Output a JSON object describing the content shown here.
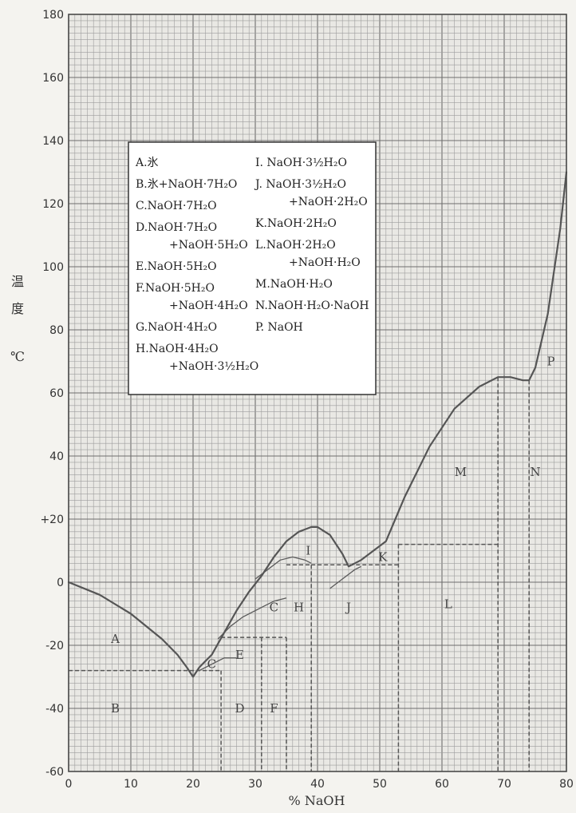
{
  "chart_data": {
    "type": "line",
    "title": "",
    "xlabel": "% NaOH",
    "ylabel": [
      "温",
      "度",
      "℃"
    ],
    "xlim": [
      0,
      80
    ],
    "ylim": [
      -60,
      180
    ],
    "xticks": [
      "0",
      "10",
      "20",
      "30",
      "40",
      "50",
      "60",
      "70",
      "80"
    ],
    "yticks": [
      "180",
      "160",
      "140",
      "120",
      "100",
      "80",
      "60",
      "40",
      "+20",
      "0",
      "-20",
      "-40",
      "-60"
    ],
    "grid": true,
    "liquidus": {
      "x": [
        0,
        5,
        10,
        15,
        17.5,
        19,
        20,
        21,
        23,
        25,
        27,
        29,
        31,
        33,
        35,
        37,
        39,
        40,
        42,
        44,
        45,
        47,
        49,
        51,
        54,
        58,
        62,
        66,
        69,
        71,
        73,
        74,
        75,
        77,
        79,
        80
      ],
      "y": [
        0,
        -4,
        -10,
        -18,
        -23,
        -27,
        -30,
        -27,
        -23,
        -16,
        -9,
        -3,
        2,
        8,
        13,
        16,
        17.5,
        17.5,
        15,
        9,
        5,
        7,
        10,
        13,
        27,
        43,
        55,
        62,
        65,
        65,
        64,
        64,
        68,
        85,
        112,
        130
      ]
    },
    "minor_curves": [
      {
        "x": [
          21,
          23,
          25,
          27
        ],
        "y": [
          -28,
          -26,
          -24,
          -24
        ]
      },
      {
        "x": [
          24,
          26,
          28,
          31,
          33,
          35
        ],
        "y": [
          -18,
          -14,
          -11,
          -8,
          -6,
          -5
        ]
      },
      {
        "x": [
          30,
          32,
          34,
          36,
          38,
          39
        ],
        "y": [
          1,
          4,
          7,
          8,
          7,
          6
        ]
      },
      {
        "x": [
          42,
          44,
          46,
          47
        ],
        "y": [
          -2,
          1,
          4,
          5
        ]
      }
    ],
    "phase_lines": [
      {
        "x": [
          0,
          24.5
        ],
        "y": [
          -28,
          -28
        ]
      },
      {
        "x": [
          24.5,
          24.5
        ],
        "y": [
          -28,
          -60
        ]
      },
      {
        "x": [
          24.5,
          35
        ],
        "y": [
          -17.5,
          -17.5
        ]
      },
      {
        "x": [
          31,
          31
        ],
        "y": [
          -17.5,
          -60
        ]
      },
      {
        "x": [
          35,
          35
        ],
        "y": [
          -17.5,
          -60
        ]
      },
      {
        "x": [
          35,
          39
        ],
        "y": [
          5.5,
          5.5
        ]
      },
      {
        "x": [
          39,
          39
        ],
        "y": [
          5.5,
          -60
        ]
      },
      {
        "x": [
          39,
          53
        ],
        "y": [
          5.5,
          5.5
        ]
      },
      {
        "x": [
          53,
          69
        ],
        "y": [
          12,
          12
        ]
      },
      {
        "x": [
          53,
          53
        ],
        "y": [
          12,
          -60
        ]
      },
      {
        "x": [
          69,
          69
        ],
        "y": [
          65,
          -60
        ]
      },
      {
        "x": [
          74,
          74
        ],
        "y": [
          64,
          -60
        ]
      }
    ],
    "region_labels": [
      {
        "text": "A",
        "x": 7.5,
        "y": -18
      },
      {
        "text": "B",
        "x": 7.5,
        "y": -40
      },
      {
        "text": "C",
        "x": 23,
        "y": -26
      },
      {
        "text": "E",
        "x": 27.5,
        "y": -23
      },
      {
        "text": "D",
        "x": 27.5,
        "y": -40
      },
      {
        "text": "F",
        "x": 33,
        "y": -40
      },
      {
        "text": "C",
        "x": 33,
        "y": -8
      },
      {
        "text": "H",
        "x": 37,
        "y": -8
      },
      {
        "text": "I",
        "x": 38.5,
        "y": 10
      },
      {
        "text": "J",
        "x": 45,
        "y": -8
      },
      {
        "text": "K",
        "x": 50.5,
        "y": 8
      },
      {
        "text": "L",
        "x": 61,
        "y": -7
      },
      {
        "text": "M",
        "x": 63,
        "y": 35
      },
      {
        "text": "N",
        "x": 75,
        "y": 35
      },
      {
        "text": "P",
        "x": 77.5,
        "y": 70
      }
    ],
    "legend": {
      "col1": [
        [
          "A.氷"
        ],
        [
          "B.氷+NaOH·7H₂O"
        ],
        [
          "C.NaOH·7H₂O"
        ],
        [
          "D.NaOH·7H₂O",
          "+NaOH·5H₂O"
        ],
        [
          "E.NaOH·5H₂O"
        ],
        [
          "F.NaOH·5H₂O",
          "+NaOH·4H₂O"
        ],
        [
          "G.NaOH·4H₂O"
        ],
        [
          "H.NaOH·4H₂O",
          "+NaOH·3½H₂O"
        ]
      ],
      "col2": [
        [
          "I. NaOH·3½H₂O"
        ],
        [
          "J. NaOH·3½H₂O",
          "+NaOH·2H₂O"
        ],
        [
          "K.NaOH·2H₂O"
        ],
        [
          "L.NaOH·2H₂O",
          "+NaOH·H₂O"
        ],
        [
          "M.NaOH·H₂O"
        ],
        [
          "N.NaOH·H₂O·NaOH"
        ],
        [
          "P. NaOH"
        ]
      ]
    }
  }
}
